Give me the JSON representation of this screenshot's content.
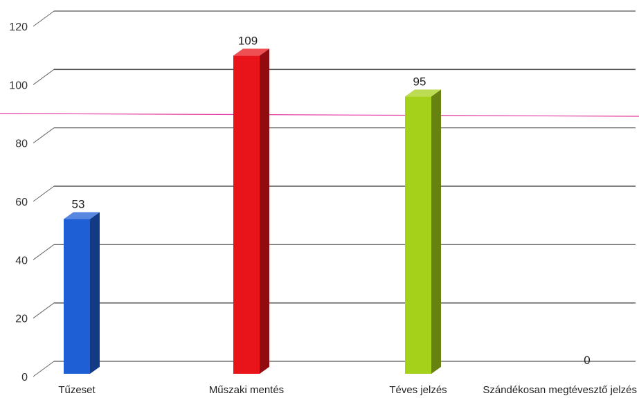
{
  "chart_data": {
    "type": "bar",
    "style": "3d-column",
    "categories": [
      "Tűzeset",
      "Műszaki mentés",
      "Téves jelzés",
      "Szándékosan megtévesztő jelzés"
    ],
    "values": [
      53,
      109,
      95,
      0
    ],
    "value_labels": [
      "53",
      "109",
      "95",
      "0"
    ],
    "colors": [
      "#1f5fd6",
      "#e8141a",
      "#a6d11a",
      "#9e9e9e"
    ],
    "ylim": [
      0,
      120
    ],
    "yticks": [
      0,
      20,
      40,
      60,
      80,
      100,
      120
    ],
    "ytick_labels": [
      "0",
      "20",
      "40",
      "60",
      "80",
      "100",
      "120"
    ],
    "grid": true,
    "legend": "none",
    "reference_line": {
      "color": "#e23aa0"
    }
  }
}
